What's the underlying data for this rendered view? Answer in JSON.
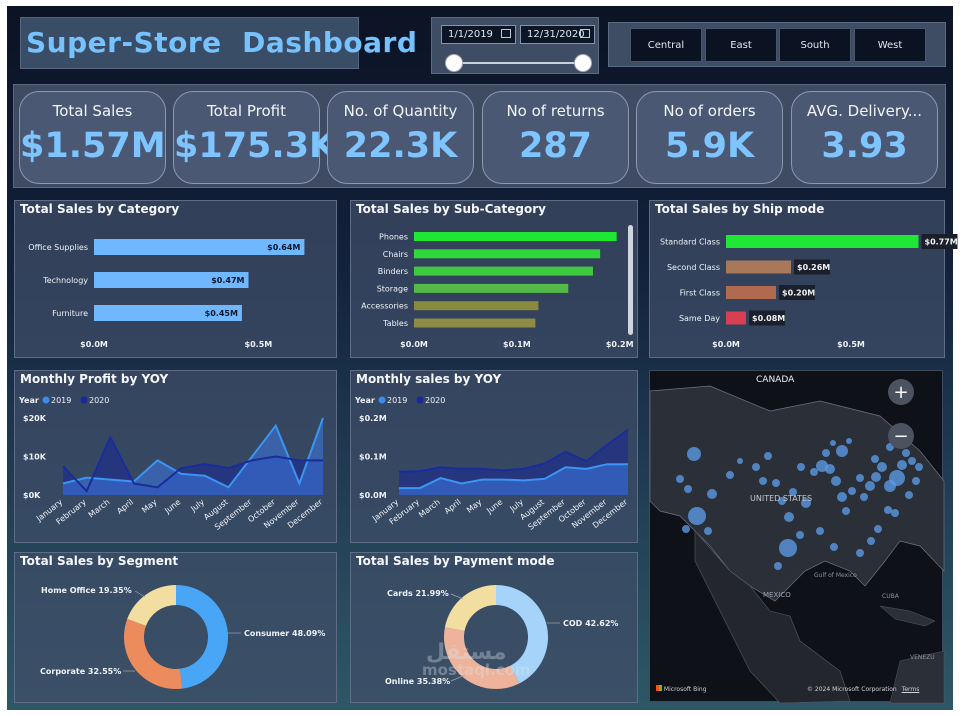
{
  "title": "Super-Store  Dashboard",
  "date_filter": {
    "start": "1/1/2019",
    "end": "12/31/2020"
  },
  "regions": [
    "Central",
    "East",
    "South",
    "West"
  ],
  "kpis": [
    {
      "label": "Total Sales",
      "value": "$1.57M"
    },
    {
      "label": "Total Profit",
      "value": "$175.3K"
    },
    {
      "label": "No. of Quantity",
      "value": "22.3K"
    },
    {
      "label": "No of returns",
      "value": "287"
    },
    {
      "label": "No of orders",
      "value": "5.9K"
    },
    {
      "label": "AVG. Delivery...",
      "value": "3.93"
    }
  ],
  "colors": {
    "accent": "#75c2ff",
    "bar_blue": "#6fb8ff",
    "green": "#1ee833",
    "olive": "#8c8a3e"
  },
  "chart_data": [
    {
      "type": "bar",
      "title": "Total Sales by Category",
      "categories": [
        "Office Supplies",
        "Technology",
        "Furniture"
      ],
      "values": [
        0.64,
        0.47,
        0.45
      ],
      "labels": [
        "$0.64M",
        "$0.47M",
        "$0.45M"
      ],
      "xticks": [
        "$0.0M",
        "$0.5M"
      ],
      "xlim": [
        0,
        0.8
      ]
    },
    {
      "type": "bar",
      "title": "Total Sales by Sub-Category",
      "categories": [
        "Phones",
        "Chairs",
        "Binders",
        "Storage",
        "Accessories",
        "Tables"
      ],
      "values": [
        0.197,
        0.181,
        0.174,
        0.15,
        0.121,
        0.118
      ],
      "xticks": [
        "$0.0M",
        "$0.1M",
        "$0.2M"
      ],
      "xlim": [
        0,
        0.21
      ]
    },
    {
      "type": "bar",
      "title": "Total Sales by Ship mode",
      "categories": [
        "Standard Class",
        "Second Class",
        "First Class",
        "Same Day"
      ],
      "values": [
        0.77,
        0.26,
        0.2,
        0.08
      ],
      "labels": [
        "$0.77M",
        "$0.26M",
        "$0.20M",
        "$0.08M"
      ],
      "colors": [
        "#1ee833",
        "#a9775a",
        "#b1694f",
        "#d64052"
      ],
      "xticks": [
        "$0.0M",
        "$0.5M"
      ],
      "xlim": [
        0,
        0.8
      ]
    },
    {
      "type": "area",
      "title": "Monthly Profit by YOY",
      "legend_title": "Year",
      "categories": [
        "January",
        "February",
        "March",
        "April",
        "May",
        "June",
        "July",
        "August",
        "September",
        "October",
        "November",
        "December"
      ],
      "series": [
        {
          "name": "2019",
          "values": [
            3000,
            4500,
            4000,
            3500,
            9000,
            5500,
            5000,
            2000,
            10000,
            18000,
            3000,
            20000
          ]
        },
        {
          "name": "2020",
          "values": [
            7500,
            1000,
            15000,
            3000,
            2000,
            7000,
            8000,
            7000,
            9000,
            10000,
            9000,
            9000
          ]
        }
      ],
      "yticks": [
        "$0K",
        "$10K",
        "$20K"
      ],
      "ylim": [
        0,
        20000
      ]
    },
    {
      "type": "area",
      "title": "Monthly sales by YOY",
      "legend_title": "Year",
      "categories": [
        "January",
        "February",
        "March",
        "April",
        "May",
        "June",
        "July",
        "August",
        "September",
        "October",
        "November",
        "December"
      ],
      "series": [
        {
          "name": "2019",
          "values": [
            18000,
            18000,
            44000,
            30000,
            40000,
            40000,
            38000,
            42000,
            72000,
            68000,
            80000,
            80000
          ]
        },
        {
          "name": "2020",
          "values": [
            60000,
            62000,
            72000,
            68000,
            68000,
            64000,
            68000,
            82000,
            112000,
            88000,
            130000,
            170000
          ]
        }
      ],
      "yticks": [
        "$0.0M",
        "$0.1M",
        "$0.2M"
      ],
      "ylim": [
        0,
        200000
      ]
    },
    {
      "type": "pie",
      "title": "Total Sales by Segment",
      "categories": [
        "Consumer",
        "Corporate",
        "Home Office"
      ],
      "values": [
        48.09,
        32.55,
        19.35
      ],
      "labels": [
        "Consumer 48.09%",
        "Corporate 32.55%",
        "Home Office 19.35%"
      ],
      "colors": [
        "#49a6f7",
        "#ec8c5c",
        "#f3dea2"
      ]
    },
    {
      "type": "pie",
      "title": "Total Sales by Payment mode",
      "categories": [
        "COD",
        "Online",
        "Cards"
      ],
      "values": [
        42.62,
        35.38,
        21.99
      ],
      "labels": [
        "COD 42.62%",
        "Online 35.38%",
        "Cards 21.99%"
      ],
      "colors": [
        "#a6d3f9",
        "#eeb39a",
        "#f3dea2"
      ]
    }
  ],
  "map": {
    "labels": [
      "CANADA",
      "UNITED STATES",
      "MEXICO",
      "Gulf of Mexico",
      "CUBA",
      "VENEZU"
    ],
    "provider": "Microsoft Bing",
    "copyright": "© 2024 Microsoft Corporation",
    "terms": "Terms",
    "zoom_in": "+",
    "zoom_out": "−"
  },
  "watermark": {
    "arabic": "مستقل",
    "latin": "mostaql.com"
  }
}
